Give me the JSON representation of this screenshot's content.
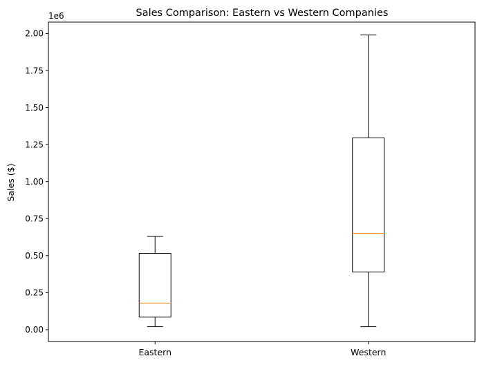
{
  "chart_data": {
    "type": "box",
    "title": "Sales Comparison: Eastern vs Western Companies",
    "ylabel": "Sales ($)",
    "xlabel": "",
    "offset_label": "1e6",
    "ylim": [
      -0.0797,
      2.0767
    ],
    "yticks": [
      0.0,
      0.25,
      0.5,
      0.75,
      1.0,
      1.25,
      1.5,
      1.75,
      2.0
    ],
    "ytick_labels": [
      "0.00",
      "0.25",
      "0.50",
      "0.75",
      "1.00",
      "1.25",
      "1.50",
      "1.75",
      "2.00"
    ],
    "categories": [
      "Eastern",
      "Western"
    ],
    "boxes": [
      {
        "label": "Eastern",
        "whislo": 0.02,
        "q1": 0.085,
        "median": 0.18,
        "q3": 0.515,
        "whishi": 0.63
      },
      {
        "label": "Western",
        "whislo": 0.02,
        "q1": 0.39,
        "median": 0.65,
        "q3": 1.295,
        "whishi": 1.99
      }
    ],
    "grid": false,
    "colors": {
      "box": "#000000",
      "median": "#ff7f0e",
      "background": "#ffffff"
    }
  }
}
